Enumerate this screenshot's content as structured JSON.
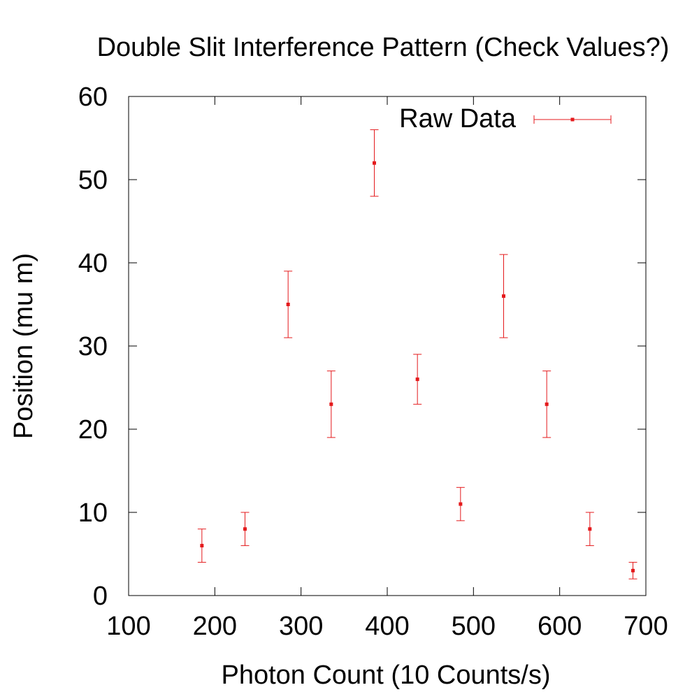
{
  "chart_data": {
    "type": "scatter",
    "title": "Double Slit Interference Pattern (Check Values?)",
    "xlabel": "Photon Count (10 Counts/s)",
    "ylabel": "Position (mu m)",
    "xlim": [
      100,
      700
    ],
    "ylim": [
      0,
      60
    ],
    "xticks": [
      100,
      200,
      300,
      400,
      500,
      600,
      700
    ],
    "yticks": [
      0,
      10,
      20,
      30,
      40,
      50,
      60
    ],
    "grid": false,
    "legend_position": "top-right",
    "series": [
      {
        "name": "Raw Data",
        "color": "#e41a1c",
        "error_bars": "y",
        "points": [
          {
            "x": 185,
            "y": 6,
            "err": 2
          },
          {
            "x": 235,
            "y": 8,
            "err": 2
          },
          {
            "x": 285,
            "y": 35,
            "err": 4
          },
          {
            "x": 335,
            "y": 23,
            "err": 4
          },
          {
            "x": 385,
            "y": 52,
            "err": 4
          },
          {
            "x": 435,
            "y": 26,
            "err": 3
          },
          {
            "x": 485,
            "y": 11,
            "err": 2
          },
          {
            "x": 535,
            "y": 36,
            "err": 5
          },
          {
            "x": 585,
            "y": 23,
            "err": 4
          },
          {
            "x": 635,
            "y": 8,
            "err": 2
          },
          {
            "x": 685,
            "y": 3,
            "err": 1
          }
        ]
      }
    ]
  }
}
